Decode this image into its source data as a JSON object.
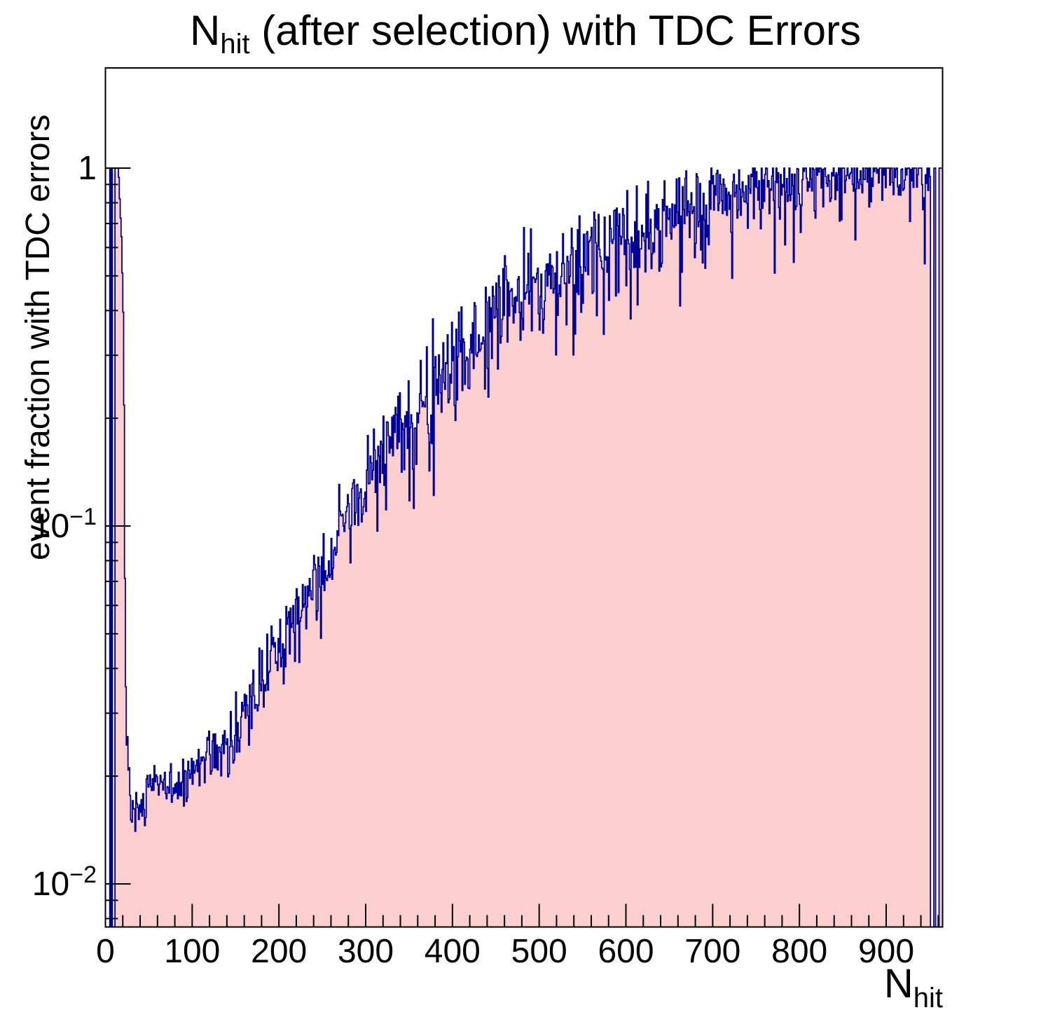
{
  "title": {
    "main": "N",
    "subscript": "hit",
    "rest": " (after selection) with TDC Errors"
  },
  "axes": {
    "y": {
      "title": "event fraction with TDC errors",
      "scale": "log",
      "major_ticks": [
        {
          "value": 1,
          "label": "1"
        },
        {
          "value": 0.1,
          "label_base": "10",
          "label_exp": "−1"
        },
        {
          "value": 0.01,
          "label_base": "10",
          "label_exp": "−2"
        }
      ],
      "minor_tick_values": [
        0.008,
        0.009,
        0.02,
        0.03,
        0.04,
        0.05,
        0.06,
        0.07,
        0.08,
        0.09,
        0.2,
        0.3,
        0.4,
        0.5,
        0.6,
        0.7,
        0.8,
        0.9
      ]
    },
    "x": {
      "title_main": "N",
      "title_sub": "hit",
      "range": [
        0,
        965
      ],
      "major_ticks": [
        {
          "value": 0,
          "label": "0"
        },
        {
          "value": 100,
          "label": "100"
        },
        {
          "value": 200,
          "label": "200"
        },
        {
          "value": 300,
          "label": "300"
        },
        {
          "value": 400,
          "label": "400"
        },
        {
          "value": 500,
          "label": "500"
        },
        {
          "value": 600,
          "label": "600"
        },
        {
          "value": 700,
          "label": "700"
        },
        {
          "value": 800,
          "label": "800"
        },
        {
          "value": 900,
          "label": "900"
        }
      ],
      "minor_tick_step": 20
    }
  },
  "chart_data": {
    "type": "bar",
    "subtype": "step-histogram",
    "title": "N_hit (after selection) with TDC Errors",
    "xlabel": "N_hit",
    "ylabel": "event fraction with TDC errors",
    "x_range": [
      0,
      965
    ],
    "y_range": [
      0.0076,
      1.9
    ],
    "y_scale": "log",
    "bin_width": 1,
    "n_bins": 965,
    "grid": false,
    "legend": "none",
    "fill_color": "#fccfcf",
    "line_color": "#000099",
    "frame_color": "#000000",
    "value_overrides": [
      [
        0,
        4,
        0
      ],
      [
        5,
        5,
        1
      ],
      [
        6,
        6,
        0
      ],
      [
        7,
        7,
        1
      ],
      [
        8,
        10,
        0
      ],
      [
        11,
        14,
        1
      ],
      [
        951,
        954,
        0
      ],
      [
        955,
        956,
        1
      ],
      [
        957,
        960,
        0
      ],
      [
        961,
        964,
        1
      ]
    ],
    "trend_points": [
      [
        15,
        0.92
      ],
      [
        16,
        0.82
      ],
      [
        17,
        0.75
      ],
      [
        18,
        0.62
      ],
      [
        19,
        0.5
      ],
      [
        20,
        0.4
      ],
      [
        21,
        0.22
      ],
      [
        22,
        0.07
      ],
      [
        23,
        0.033
      ],
      [
        24,
        0.025
      ],
      [
        26,
        0.021
      ],
      [
        28,
        0.018
      ],
      [
        31,
        0.0162
      ],
      [
        35,
        0.0155
      ],
      [
        40,
        0.0165
      ],
      [
        50,
        0.018
      ],
      [
        60,
        0.0185
      ],
      [
        70,
        0.019
      ],
      [
        80,
        0.019
      ],
      [
        90,
        0.0195
      ],
      [
        100,
        0.021
      ],
      [
        110,
        0.022
      ],
      [
        120,
        0.023
      ],
      [
        130,
        0.024
      ],
      [
        140,
        0.025
      ],
      [
        150,
        0.026
      ],
      [
        160,
        0.03
      ],
      [
        170,
        0.033
      ],
      [
        180,
        0.036
      ],
      [
        190,
        0.042
      ],
      [
        200,
        0.048
      ],
      [
        210,
        0.052
      ],
      [
        220,
        0.056
      ],
      [
        230,
        0.062
      ],
      [
        240,
        0.068
      ],
      [
        250,
        0.075
      ],
      [
        260,
        0.085
      ],
      [
        270,
        0.098
      ],
      [
        280,
        0.112
      ],
      [
        290,
        0.124
      ],
      [
        300,
        0.135
      ],
      [
        310,
        0.147
      ],
      [
        320,
        0.16
      ],
      [
        330,
        0.175
      ],
      [
        340,
        0.188
      ],
      [
        350,
        0.2
      ],
      [
        360,
        0.215
      ],
      [
        370,
        0.232
      ],
      [
        380,
        0.25
      ],
      [
        390,
        0.265
      ],
      [
        400,
        0.285
      ],
      [
        420,
        0.325
      ],
      [
        440,
        0.365
      ],
      [
        460,
        0.405
      ],
      [
        480,
        0.445
      ],
      [
        500,
        0.485
      ],
      [
        520,
        0.52
      ],
      [
        540,
        0.55
      ],
      [
        560,
        0.58
      ],
      [
        580,
        0.61
      ],
      [
        600,
        0.64
      ],
      [
        620,
        0.665
      ],
      [
        640,
        0.69
      ],
      [
        660,
        0.72
      ],
      [
        680,
        0.76
      ],
      [
        700,
        0.8
      ],
      [
        720,
        0.83
      ],
      [
        740,
        0.86
      ],
      [
        760,
        0.885
      ],
      [
        780,
        0.91
      ],
      [
        800,
        0.93
      ],
      [
        820,
        0.95
      ],
      [
        840,
        0.965
      ],
      [
        860,
        0.975
      ],
      [
        880,
        0.98
      ],
      [
        900,
        0.985
      ],
      [
        925,
        0.985
      ],
      [
        950,
        0.985
      ]
    ],
    "noise_segments": [
      [
        15,
        21,
        0.012
      ],
      [
        22,
        119,
        0.035
      ],
      [
        120,
        299,
        0.05
      ],
      [
        300,
        699,
        0.07
      ],
      [
        700,
        849,
        0.05
      ],
      [
        850,
        950,
        0.04
      ]
    ],
    "dip": {
      "x_min": 200,
      "x_max": 950,
      "probability": 0.05,
      "extra_dex_min": 0.08,
      "extra_dex_max": 0.22
    },
    "clip_max": 1.0,
    "seed": 907
  }
}
